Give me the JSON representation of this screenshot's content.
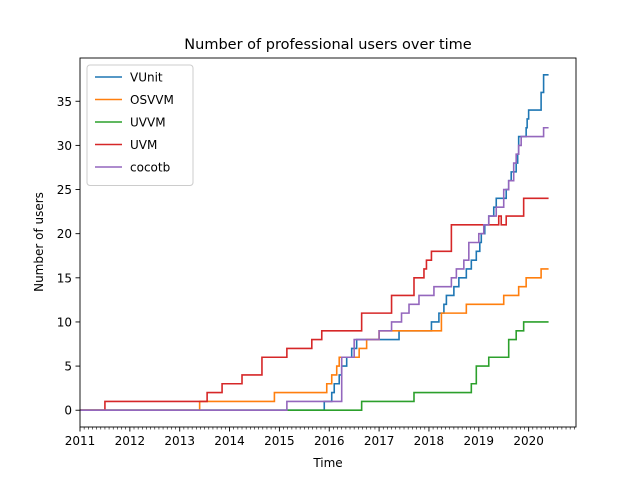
{
  "chart_data": {
    "type": "line",
    "title": "Number of professional users over time",
    "xlabel": "Time",
    "ylabel": "Number of users",
    "xlim": [
      2011.0,
      2020.95
    ],
    "ylim": [
      -1.9,
      39.9
    ],
    "xticks": [
      2011,
      2012,
      2013,
      2014,
      2015,
      2016,
      2017,
      2018,
      2019,
      2020
    ],
    "yticks": [
      0,
      5,
      10,
      15,
      20,
      25,
      30,
      35
    ],
    "grid": false,
    "legend_position": "top-left",
    "series": [
      {
        "name": "VUnit",
        "color": "#1f77b4",
        "points": [
          [
            2011.0,
            0
          ],
          [
            2015.9,
            0
          ],
          [
            2015.9,
            1
          ],
          [
            2016.05,
            1
          ],
          [
            2016.05,
            2
          ],
          [
            2016.1,
            2
          ],
          [
            2016.1,
            3
          ],
          [
            2016.2,
            3
          ],
          [
            2016.2,
            4
          ],
          [
            2016.25,
            4
          ],
          [
            2016.25,
            5
          ],
          [
            2016.35,
            5
          ],
          [
            2016.35,
            6
          ],
          [
            2016.45,
            6
          ],
          [
            2016.45,
            7
          ],
          [
            2016.55,
            7
          ],
          [
            2016.55,
            8
          ],
          [
            2017.4,
            8
          ],
          [
            2017.4,
            9
          ],
          [
            2018.05,
            9
          ],
          [
            2018.05,
            10
          ],
          [
            2018.2,
            10
          ],
          [
            2018.2,
            11
          ],
          [
            2018.3,
            11
          ],
          [
            2018.3,
            12
          ],
          [
            2018.35,
            12
          ],
          [
            2018.35,
            13
          ],
          [
            2018.5,
            13
          ],
          [
            2018.5,
            14
          ],
          [
            2018.6,
            14
          ],
          [
            2018.6,
            15
          ],
          [
            2018.75,
            15
          ],
          [
            2018.75,
            16
          ],
          [
            2018.85,
            16
          ],
          [
            2018.85,
            17
          ],
          [
            2018.95,
            17
          ],
          [
            2018.95,
            18
          ],
          [
            2019.02,
            18
          ],
          [
            2019.02,
            19
          ],
          [
            2019.05,
            19
          ],
          [
            2019.05,
            20
          ],
          [
            2019.12,
            20
          ],
          [
            2019.12,
            21
          ],
          [
            2019.2,
            21
          ],
          [
            2019.2,
            22
          ],
          [
            2019.3,
            22
          ],
          [
            2019.3,
            23
          ],
          [
            2019.35,
            23
          ],
          [
            2019.35,
            24
          ],
          [
            2019.55,
            24
          ],
          [
            2019.55,
            25
          ],
          [
            2019.6,
            25
          ],
          [
            2019.6,
            26
          ],
          [
            2019.65,
            26
          ],
          [
            2019.65,
            27
          ],
          [
            2019.75,
            27
          ],
          [
            2019.75,
            28
          ],
          [
            2019.78,
            28
          ],
          [
            2019.78,
            29
          ],
          [
            2019.8,
            29
          ],
          [
            2019.8,
            31
          ],
          [
            2019.95,
            31
          ],
          [
            2019.95,
            32
          ],
          [
            2019.97,
            32
          ],
          [
            2019.97,
            33
          ],
          [
            2020.0,
            33
          ],
          [
            2020.0,
            34
          ],
          [
            2020.25,
            34
          ],
          [
            2020.25,
            36
          ],
          [
            2020.3,
            36
          ],
          [
            2020.3,
            38
          ],
          [
            2020.4,
            38
          ]
        ]
      },
      {
        "name": "OSVVM",
        "color": "#ff7f0e",
        "points": [
          [
            2011.0,
            0
          ],
          [
            2013.4,
            0
          ],
          [
            2013.4,
            1
          ],
          [
            2014.9,
            1
          ],
          [
            2014.9,
            2
          ],
          [
            2015.95,
            2
          ],
          [
            2015.95,
            3
          ],
          [
            2016.05,
            3
          ],
          [
            2016.05,
            4
          ],
          [
            2016.15,
            4
          ],
          [
            2016.15,
            5
          ],
          [
            2016.2,
            5
          ],
          [
            2016.2,
            6
          ],
          [
            2016.6,
            6
          ],
          [
            2016.6,
            7
          ],
          [
            2016.75,
            7
          ],
          [
            2016.75,
            8
          ],
          [
            2017.0,
            8
          ],
          [
            2017.0,
            9
          ],
          [
            2018.25,
            9
          ],
          [
            2018.25,
            11
          ],
          [
            2018.75,
            11
          ],
          [
            2018.75,
            12
          ],
          [
            2019.5,
            12
          ],
          [
            2019.5,
            13
          ],
          [
            2019.8,
            13
          ],
          [
            2019.8,
            14
          ],
          [
            2019.95,
            14
          ],
          [
            2019.95,
            15
          ],
          [
            2020.25,
            15
          ],
          [
            2020.25,
            16
          ],
          [
            2020.4,
            16
          ]
        ]
      },
      {
        "name": "UVVM",
        "color": "#2ca02c",
        "points": [
          [
            2011.0,
            0
          ],
          [
            2016.65,
            0
          ],
          [
            2016.65,
            1
          ],
          [
            2017.7,
            1
          ],
          [
            2017.7,
            2
          ],
          [
            2018.85,
            2
          ],
          [
            2018.85,
            3
          ],
          [
            2018.95,
            3
          ],
          [
            2018.95,
            5
          ],
          [
            2019.2,
            5
          ],
          [
            2019.2,
            6
          ],
          [
            2019.6,
            6
          ],
          [
            2019.6,
            8
          ],
          [
            2019.75,
            8
          ],
          [
            2019.75,
            9
          ],
          [
            2019.9,
            9
          ],
          [
            2019.9,
            10
          ],
          [
            2020.4,
            10
          ]
        ]
      },
      {
        "name": "UVM",
        "color": "#d62728",
        "points": [
          [
            2011.0,
            0
          ],
          [
            2011.5,
            0
          ],
          [
            2011.5,
            1
          ],
          [
            2013.55,
            1
          ],
          [
            2013.55,
            2
          ],
          [
            2013.85,
            2
          ],
          [
            2013.85,
            3
          ],
          [
            2014.25,
            3
          ],
          [
            2014.25,
            4
          ],
          [
            2014.65,
            4
          ],
          [
            2014.65,
            6
          ],
          [
            2015.15,
            6
          ],
          [
            2015.15,
            7
          ],
          [
            2015.65,
            7
          ],
          [
            2015.65,
            8
          ],
          [
            2015.85,
            8
          ],
          [
            2015.85,
            9
          ],
          [
            2016.65,
            9
          ],
          [
            2016.65,
            11
          ],
          [
            2017.25,
            11
          ],
          [
            2017.25,
            13
          ],
          [
            2017.7,
            13
          ],
          [
            2017.7,
            15
          ],
          [
            2017.9,
            15
          ],
          [
            2017.9,
            16
          ],
          [
            2017.95,
            16
          ],
          [
            2017.95,
            17
          ],
          [
            2018.05,
            17
          ],
          [
            2018.05,
            18
          ],
          [
            2018.45,
            18
          ],
          [
            2018.45,
            21
          ],
          [
            2019.4,
            21
          ],
          [
            2019.4,
            22
          ],
          [
            2019.45,
            22
          ],
          [
            2019.45,
            21
          ],
          [
            2019.55,
            21
          ],
          [
            2019.55,
            22
          ],
          [
            2019.9,
            22
          ],
          [
            2019.9,
            24
          ],
          [
            2020.4,
            24
          ]
        ]
      },
      {
        "name": "cocotb",
        "color": "#9467bd",
        "points": [
          [
            2011.0,
            0
          ],
          [
            2015.15,
            0
          ],
          [
            2015.15,
            1
          ],
          [
            2016.25,
            1
          ],
          [
            2016.25,
            6
          ],
          [
            2016.5,
            6
          ],
          [
            2016.5,
            8
          ],
          [
            2017.0,
            8
          ],
          [
            2017.0,
            9
          ],
          [
            2017.25,
            9
          ],
          [
            2017.25,
            10
          ],
          [
            2017.45,
            10
          ],
          [
            2017.45,
            11
          ],
          [
            2017.6,
            11
          ],
          [
            2017.6,
            12
          ],
          [
            2017.8,
            12
          ],
          [
            2017.8,
            13
          ],
          [
            2018.1,
            13
          ],
          [
            2018.1,
            14
          ],
          [
            2018.45,
            14
          ],
          [
            2018.45,
            15
          ],
          [
            2018.55,
            15
          ],
          [
            2018.55,
            16
          ],
          [
            2018.7,
            16
          ],
          [
            2018.7,
            17
          ],
          [
            2018.8,
            17
          ],
          [
            2018.8,
            19
          ],
          [
            2019.0,
            19
          ],
          [
            2019.0,
            20
          ],
          [
            2019.1,
            20
          ],
          [
            2019.1,
            21
          ],
          [
            2019.2,
            21
          ],
          [
            2019.2,
            22
          ],
          [
            2019.35,
            22
          ],
          [
            2019.35,
            23
          ],
          [
            2019.5,
            23
          ],
          [
            2019.5,
            25
          ],
          [
            2019.6,
            25
          ],
          [
            2019.6,
            26
          ],
          [
            2019.7,
            26
          ],
          [
            2019.7,
            28
          ],
          [
            2019.75,
            28
          ],
          [
            2019.75,
            29
          ],
          [
            2019.8,
            29
          ],
          [
            2019.8,
            30
          ],
          [
            2019.85,
            30
          ],
          [
            2019.85,
            31
          ],
          [
            2020.3,
            31
          ],
          [
            2020.3,
            32
          ],
          [
            2020.4,
            32
          ]
        ]
      }
    ]
  }
}
